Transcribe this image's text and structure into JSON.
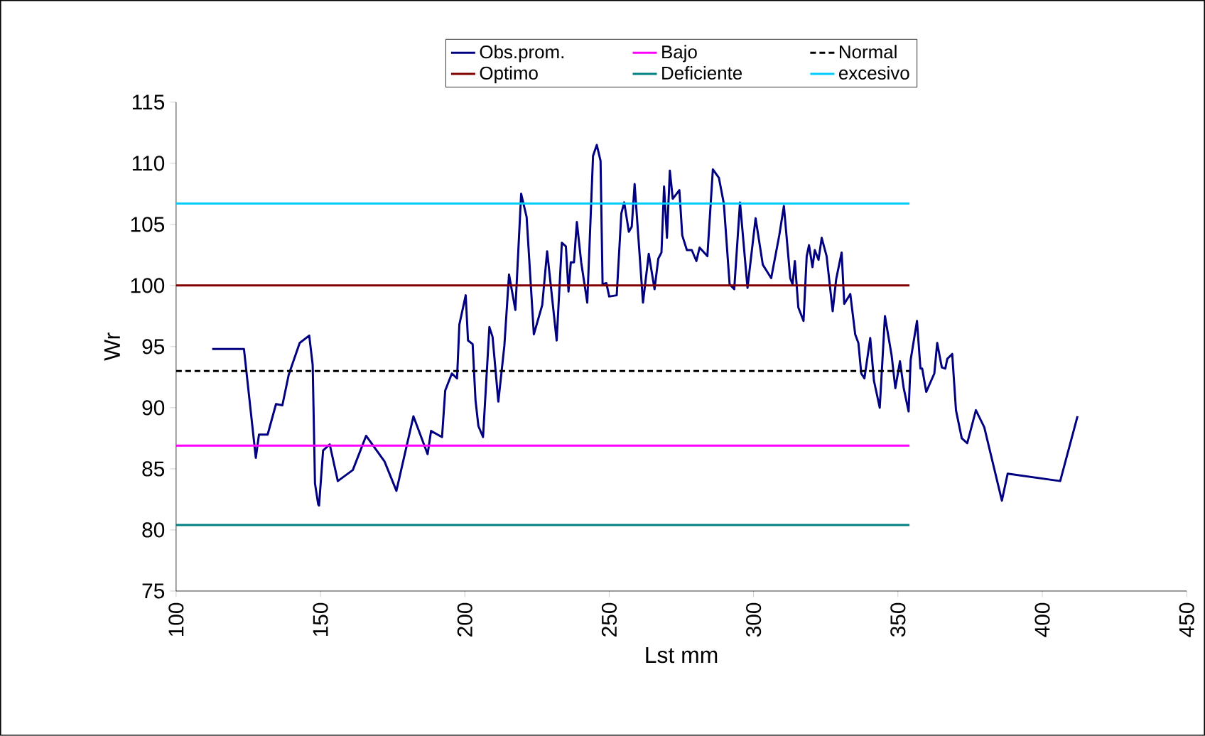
{
  "chart_data": {
    "type": "line",
    "xlabel": "Lst mm",
    "ylabel": "Wr",
    "xlim": [
      100,
      450
    ],
    "ylim": [
      75,
      115
    ],
    "xticks": [
      100,
      150,
      200,
      250,
      300,
      350,
      400,
      450
    ],
    "yticks": [
      75,
      80,
      85,
      90,
      95,
      100,
      105,
      110,
      115
    ],
    "legend": "top",
    "marker": "none",
    "series": [
      {
        "name": "Obs.prom.",
        "color": "#000080",
        "line_style": "solid",
        "x": [
          112.5,
          123.5,
          127.6,
          128.7,
          131.7,
          134.6,
          136.8,
          139,
          142.8,
          146.1,
          147.3,
          148.1,
          149.2,
          149.5,
          150.9,
          153.2,
          156,
          161.2,
          165.8,
          172.2,
          176.3,
          182.2,
          187.1,
          188.3,
          192.1,
          193.2,
          195.5,
          197.3,
          198.1,
          200.3,
          201.1,
          202.7,
          203.7,
          204.7,
          206.3,
          208.5,
          209.6,
          211.6,
          213.7,
          215.3,
          217.5,
          219.5,
          221.4,
          223.9,
          226.8,
          228.5,
          231.8,
          233.6,
          235,
          235.9,
          236.7,
          237.8,
          238.8,
          240.3,
          242.4,
          244.4,
          245.7,
          247,
          247.7,
          249,
          250,
          252.6,
          254.2,
          255.2,
          256.8,
          257.8,
          258.8,
          261.7,
          263.7,
          265.7,
          267,
          268.1,
          269,
          270,
          271,
          272,
          273,
          274.3,
          275.3,
          276.9,
          278.6,
          280.2,
          281.3,
          284,
          285.9,
          288,
          289.7,
          291.7,
          293.3,
          295.3,
          297.9,
          300.7,
          303.2,
          304.8,
          306.1,
          308.9,
          310.5,
          312.7,
          313.5,
          314.3,
          315.5,
          317.3,
          318.4,
          319.2,
          320.4,
          321.2,
          322.5,
          323.6,
          325.3,
          327.4,
          328.6,
          330.5,
          331.4,
          333.5,
          335.2,
          336.3,
          337.3,
          338.4,
          340.4,
          341.7,
          343.7,
          345.5,
          347.8,
          349.1,
          350.7,
          352,
          353.7,
          354.4,
          356.6,
          357.8,
          358.4,
          359.8,
          362.6,
          363.6,
          365.2,
          366.4,
          367.1,
          368.8,
          370.1,
          372.1,
          374,
          377,
          379.9,
          386,
          388,
          406.2,
          412.2
        ],
        "values": [
          94.8,
          94.8,
          85.9,
          87.8,
          87.8,
          90.3,
          90.2,
          92.7,
          95.3,
          95.9,
          93.5,
          83.8,
          82.1,
          82,
          86.5,
          87,
          84,
          84.9,
          87.7,
          85.6,
          83.2,
          89.3,
          86.2,
          88.1,
          87.6,
          91.4,
          92.8,
          92.4,
          96.8,
          99.2,
          95.5,
          95.2,
          90.6,
          88.5,
          87.6,
          96.6,
          95.8,
          90.5,
          95.1,
          100.9,
          98,
          107.5,
          105.6,
          96,
          98.4,
          102.8,
          95.5,
          103.5,
          103.2,
          99.5,
          101.9,
          101.9,
          105.2,
          101.9,
          98.6,
          110.6,
          111.5,
          110.2,
          100.1,
          100.2,
          99.1,
          99.2,
          105.9,
          106.8,
          104.4,
          104.8,
          108.3,
          98.6,
          102.6,
          99.7,
          102.2,
          102.7,
          108.1,
          103.9,
          109.4,
          107.1,
          107.4,
          107.8,
          104.1,
          102.9,
          102.9,
          102,
          103.1,
          102.4,
          109.5,
          108.8,
          106.7,
          100.1,
          99.7,
          106.8,
          99.8,
          105.5,
          101.7,
          101.1,
          100.6,
          104.1,
          106.5,
          100.6,
          100.1,
          102,
          98.2,
          97.1,
          102.4,
          103.3,
          101.5,
          102.9,
          102.1,
          103.9,
          102.4,
          97.9,
          100.5,
          102.7,
          98.5,
          99.3,
          96,
          95.3,
          92.8,
          92.4,
          95.7,
          92.2,
          90,
          97.5,
          94.3,
          91.6,
          93.8,
          91.6,
          89.7,
          93.9,
          97.1,
          93.2,
          93.2,
          91.3,
          92.8,
          95.3,
          93.3,
          93.2,
          94,
          94.4,
          89.8,
          87.5,
          87.1,
          89.8,
          88.4,
          82.4,
          84.6,
          84,
          89.3
        ]
      },
      {
        "name": "Bajo",
        "color": "#ff00ff",
        "line_style": "solid",
        "x": [
          100,
          354
        ],
        "values": [
          86.9,
          86.9
        ]
      },
      {
        "name": "Normal",
        "color": "#000000",
        "line_style": "dashed",
        "x": [
          100,
          354
        ],
        "values": [
          93,
          93
        ]
      },
      {
        "name": "Optimo",
        "color": "#800000",
        "line_style": "solid",
        "x": [
          100,
          354
        ],
        "values": [
          100,
          100
        ]
      },
      {
        "name": "Deficiente",
        "color": "#008080",
        "line_style": "solid",
        "x": [
          100,
          354
        ],
        "values": [
          80.4,
          80.4
        ]
      },
      {
        "name": "excesivo",
        "color": "#00ccff",
        "line_style": "solid",
        "x": [
          100,
          354
        ],
        "values": [
          106.7,
          106.7
        ]
      }
    ]
  }
}
